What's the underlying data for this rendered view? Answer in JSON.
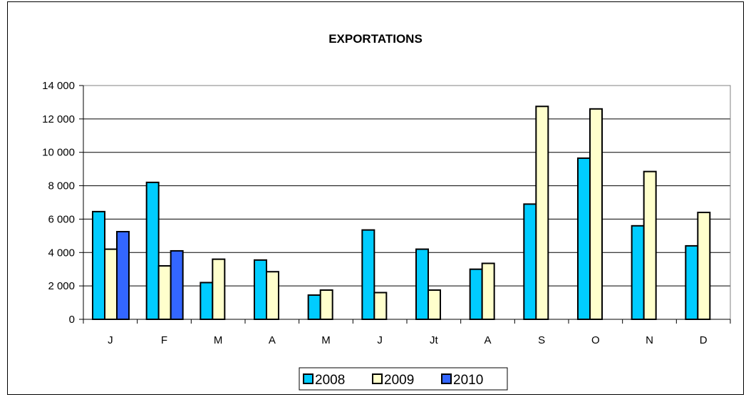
{
  "chart_data": {
    "type": "bar",
    "title": "EXPORTATIONS",
    "xlabel": "",
    "ylabel": "",
    "categories": [
      "J",
      "F",
      "M",
      "A",
      "M",
      "J",
      "Jt",
      "A",
      "S",
      "O",
      "N",
      "D"
    ],
    "ylim": [
      0,
      14000
    ],
    "yticks": [
      0,
      2000,
      4000,
      6000,
      8000,
      10000,
      12000,
      14000
    ],
    "ytick_labels": [
      "0",
      "2 000",
      "4 000",
      "6 000",
      "8 000",
      "10 000",
      "12 000",
      "14 000"
    ],
    "grid": true,
    "legend_position": "bottom",
    "series": [
      {
        "name": "2008",
        "color": "#00CCFF",
        "values": [
          6450,
          8200,
          2200,
          3550,
          1450,
          5350,
          4200,
          3000,
          6900,
          9650,
          5600,
          4400
        ]
      },
      {
        "name": "2009",
        "color": "#FFFFCC",
        "values": [
          4200,
          3200,
          3600,
          2850,
          1750,
          1600,
          1750,
          3350,
          12750,
          12600,
          8850,
          6400
        ]
      },
      {
        "name": "2010",
        "color": "#3366FF",
        "values": [
          5250,
          4100,
          null,
          null,
          null,
          null,
          null,
          null,
          null,
          null,
          null,
          null
        ]
      }
    ]
  }
}
